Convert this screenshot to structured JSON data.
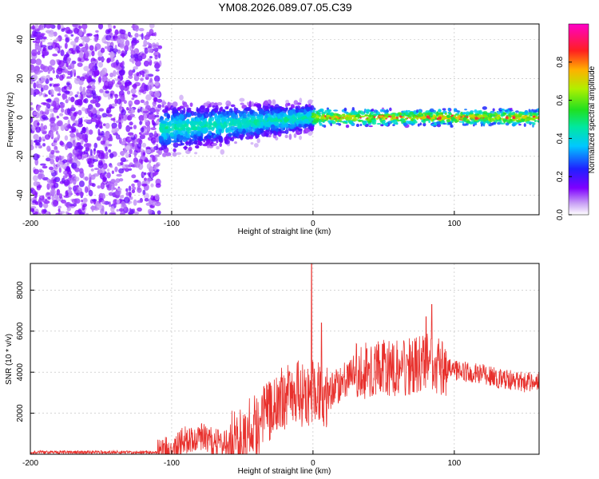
{
  "title": "YM08.2026.089.07.05.C39",
  "colors": {
    "snr_line": "#e8302c",
    "axis": "#000000",
    "grid": "#bbbbbb"
  },
  "chart_data": [
    {
      "type": "heatmap",
      "name": "spectrogram",
      "xlabel": "Height of straight line (km)",
      "ylabel": "Frequency (Hz)",
      "xlim": [
        -200,
        160
      ],
      "ylim": [
        -50,
        48
      ],
      "xticks": [
        -200,
        -100,
        0,
        100
      ],
      "yticks": [
        -40,
        -20,
        0,
        20,
        40
      ],
      "xtick_labels": [
        "-200",
        "-100",
        "0",
        "100"
      ],
      "ytick_labels": [
        "-40",
        "-20",
        "0",
        "20",
        "40"
      ],
      "grid": true,
      "colorbar": {
        "label": "Normalized spectral amplitude",
        "range": [
          0,
          1
        ],
        "ticks": [
          0.0,
          0.2,
          0.4,
          0.6,
          0.8
        ],
        "tick_labels": [
          "0.0",
          "0.2",
          "0.4",
          "0.6",
          "0.8"
        ],
        "colormap": "rainbow (violet-blue-cyan-green-yellow-red-magenta)"
      },
      "regions": [
        {
          "x_range": [
            -200,
            -108
          ],
          "description": "broadband noise, low amplitude",
          "amplitude": 0.05
        },
        {
          "x_range": [
            -108,
            0
          ],
          "description": "scattered signal band around 0 Hz",
          "freq_center": [
            -8,
            0
          ],
          "amplitude": 0.25
        },
        {
          "x_range": [
            0,
            160
          ],
          "description": "narrow band at 0 Hz",
          "freq_center": [
            0,
            0
          ],
          "amplitude": 0.6
        }
      ]
    },
    {
      "type": "line",
      "name": "snr",
      "xlabel": "Height of straight line (km)",
      "ylabel": "SNR (10 * v/v)",
      "xlim": [
        -200,
        160
      ],
      "ylim": [
        0,
        9300
      ],
      "xticks": [
        -200,
        -100,
        0,
        100
      ],
      "yticks": [
        2000,
        4000,
        6000,
        8000
      ],
      "xtick_labels": [
        "-200",
        "-100",
        "0",
        "100"
      ],
      "ytick_labels": [
        "2000",
        "4000",
        "6000",
        "8000"
      ],
      "grid": true,
      "series": [
        {
          "name": "SNR",
          "x": [
            -200,
            -150,
            -110,
            -100,
            -90,
            -80,
            -70,
            -60,
            -50,
            -40,
            -30,
            -20,
            -10,
            -5,
            0,
            5,
            10,
            20,
            30,
            40,
            50,
            60,
            70,
            80,
            85,
            90,
            100,
            110,
            120,
            130,
            140,
            150,
            160
          ],
          "y": [
            100,
            100,
            100,
            300,
            700,
            900,
            600,
            500,
            800,
            1500,
            2200,
            2800,
            3000,
            2600,
            3200,
            3000,
            2900,
            3500,
            4000,
            4100,
            4200,
            4200,
            4300,
            4500,
            4400,
            4300,
            4100,
            4000,
            3900,
            3700,
            3600,
            3500,
            3600
          ]
        }
      ],
      "spikes": [
        {
          "x": -1,
          "y": 9300
        },
        {
          "x": 84,
          "y": 7300
        },
        {
          "x": 80,
          "y": 6700
        },
        {
          "x": 6,
          "y": 6400
        }
      ]
    }
  ]
}
